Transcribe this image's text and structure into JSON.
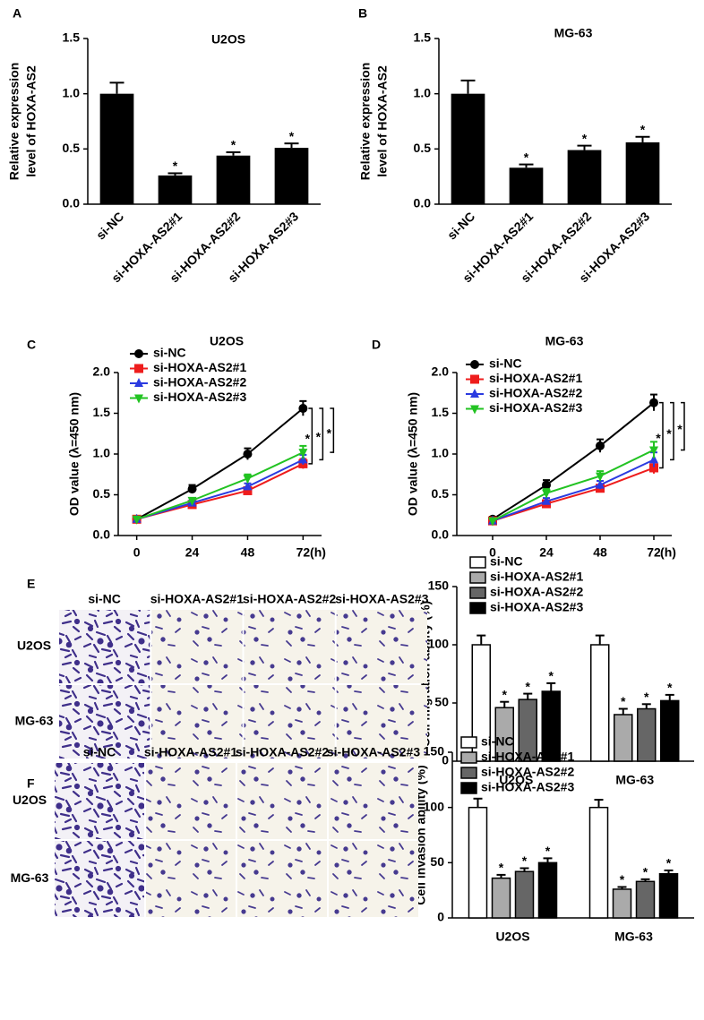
{
  "chart_data": [
    {
      "panel": "A",
      "type": "bar",
      "title": "U2OS",
      "ylabel": [
        "Relative expression",
        "level of HOXA-AS2"
      ],
      "categories": [
        "si-NC",
        "si-HOXA-AS2#1",
        "si-HOXA-AS2#2",
        "si-HOXA-AS2#3"
      ],
      "values": [
        1.0,
        0.26,
        0.44,
        0.51
      ],
      "errors": [
        0.1,
        0.02,
        0.03,
        0.04
      ],
      "annotations": [
        null,
        "*",
        "*",
        "*"
      ],
      "color": "#000000",
      "ylim": [
        0,
        1.5
      ],
      "yticks": [
        {
          "value": 0,
          "label": "0.0"
        },
        0.5,
        {
          "value": 1,
          "label": "1.0"
        },
        1.5
      ]
    },
    {
      "panel": "B",
      "type": "bar",
      "title": "MG-63",
      "ylabel": [
        "Relative expression",
        "level of HOXA-AS2"
      ],
      "categories": [
        "si-NC",
        "si-HOXA-AS2#1",
        "si-HOXA-AS2#2",
        "si-HOXA-AS2#3"
      ],
      "values": [
        1.0,
        0.33,
        0.49,
        0.56
      ],
      "errors": [
        0.12,
        0.03,
        0.04,
        0.05
      ],
      "annotations": [
        null,
        "*",
        "*",
        "*"
      ],
      "color": "#000000",
      "ylim": [
        0,
        1.5
      ],
      "yticks": [
        {
          "value": 0,
          "label": "0.0"
        },
        0.5,
        {
          "value": 1,
          "label": "1.0"
        },
        1.5
      ]
    },
    {
      "panel": "C",
      "type": "line",
      "title": "U2OS",
      "ylabel": [
        "OD value (λ=450 nm)"
      ],
      "xlabel": "(h)",
      "x": [
        0,
        24,
        48,
        72
      ],
      "xlim": [
        -8,
        80
      ],
      "xticks": [
        0,
        24,
        48,
        72
      ],
      "ylim": [
        0,
        2
      ],
      "yticks": [
        {
          "value": 0,
          "label": "0.0"
        },
        0.5,
        {
          "value": 1,
          "label": "1.0"
        },
        1.5,
        {
          "value": 2,
          "label": "2.0"
        }
      ],
      "legend": "upper left",
      "annotations": [
        "*",
        "*",
        "*"
      ],
      "series": [
        {
          "name": "si-NC",
          "color": "#000000",
          "marker": "circle",
          "values": [
            0.2,
            0.57,
            1.0,
            1.56
          ],
          "errors": [
            0.03,
            0.05,
            0.07,
            0.09
          ]
        },
        {
          "name": "si-HOXA-AS2#1",
          "color": "#ee1c1c",
          "marker": "square",
          "values": [
            0.2,
            0.38,
            0.55,
            0.88
          ],
          "errors": [
            0.02,
            0.03,
            0.04,
            0.06
          ]
        },
        {
          "name": "si-HOXA-AS2#2",
          "color": "#2b3be0",
          "marker": "triangle-up",
          "values": [
            0.2,
            0.4,
            0.6,
            0.93
          ],
          "errors": [
            0.02,
            0.03,
            0.04,
            0.06
          ]
        },
        {
          "name": "si-HOXA-AS2#3",
          "color": "#22c322",
          "marker": "triangle-down",
          "values": [
            0.2,
            0.43,
            0.7,
            1.02
          ],
          "errors": [
            0.02,
            0.03,
            0.05,
            0.08
          ]
        }
      ]
    },
    {
      "panel": "D",
      "type": "line",
      "title": "MG-63",
      "ylabel": [
        "OD value (λ=450 nm)"
      ],
      "xlabel": "(h)",
      "x": [
        0,
        24,
        48,
        72
      ],
      "xlim": [
        -16,
        80
      ],
      "xticks": [
        0,
        24,
        48,
        72
      ],
      "ylim": [
        0,
        2
      ],
      "yticks": [
        {
          "value": 0,
          "label": "0.0"
        },
        0.5,
        {
          "value": 1,
          "label": "1.0"
        },
        1.5,
        {
          "value": 2,
          "label": "2.0"
        }
      ],
      "legend": "upper left",
      "annotations": [
        "*",
        "*",
        "*"
      ],
      "series": [
        {
          "name": "si-NC",
          "color": "#000000",
          "marker": "circle",
          "values": [
            0.2,
            0.62,
            1.1,
            1.63
          ],
          "errors": [
            0.03,
            0.06,
            0.08,
            0.1
          ]
        },
        {
          "name": "si-HOXA-AS2#1",
          "color": "#ee1c1c",
          "marker": "square",
          "values": [
            0.18,
            0.39,
            0.58,
            0.83
          ],
          "errors": [
            0.02,
            0.04,
            0.04,
            0.07
          ]
        },
        {
          "name": "si-HOXA-AS2#2",
          "color": "#2b3be0",
          "marker": "triangle-up",
          "values": [
            0.18,
            0.42,
            0.62,
            0.93
          ],
          "errors": [
            0.02,
            0.04,
            0.05,
            0.09
          ]
        },
        {
          "name": "si-HOXA-AS2#3",
          "color": "#22c322",
          "marker": "triangle-down",
          "values": [
            0.18,
            0.52,
            0.73,
            1.05
          ],
          "errors": [
            0.02,
            0.05,
            0.06,
            0.1
          ]
        }
      ]
    },
    {
      "panel": "E",
      "type": "bar",
      "ylabel": [
        "Cell migration ability (%)"
      ],
      "image_columns": [
        "si-NC",
        "si-HOXA-AS2#1",
        "si-HOXA-AS2#2",
        "si-HOXA-AS2#3"
      ],
      "image_rows": [
        "U2OS",
        "MG-63"
      ],
      "categories": [
        "U2OS",
        "MG-63"
      ],
      "ylim": [
        0,
        150
      ],
      "yticks": [
        0,
        50,
        100,
        150
      ],
      "legend": "top",
      "series": [
        {
          "name": "si-NC",
          "color": "#ffffff",
          "values": [
            100,
            100
          ],
          "errors": [
            8,
            8
          ]
        },
        {
          "name": "si-HOXA-AS2#1",
          "color": "#aaaaaa",
          "values": [
            46,
            40
          ],
          "errors": [
            5,
            5
          ],
          "annotations": [
            "*",
            "*"
          ]
        },
        {
          "name": "si-HOXA-AS2#2",
          "color": "#666666",
          "values": [
            53,
            45
          ],
          "errors": [
            5,
            4
          ],
          "annotations": [
            "*",
            "*"
          ]
        },
        {
          "name": "si-HOXA-AS2#3",
          "color": "#000000",
          "values": [
            60,
            52
          ],
          "errors": [
            7,
            5
          ],
          "annotations": [
            "*",
            "*"
          ]
        }
      ]
    },
    {
      "panel": "F",
      "type": "bar",
      "ylabel": [
        "Cell invasion ability (%)"
      ],
      "image_columns": [
        "si-NC",
        "si-HOXA-AS2#1",
        "si-HOXA-AS2#2",
        "si-HOXA-AS2#3"
      ],
      "image_rows": [
        "U2OS",
        "MG-63"
      ],
      "categories": [
        "U2OS",
        "MG-63"
      ],
      "ylim": [
        0,
        150
      ],
      "yticks": [
        0,
        50,
        100,
        150
      ],
      "legend": "top",
      "series": [
        {
          "name": "si-NC",
          "color": "#ffffff",
          "values": [
            100,
            100
          ],
          "errors": [
            8,
            7
          ]
        },
        {
          "name": "si-HOXA-AS2#1",
          "color": "#aaaaaa",
          "values": [
            36,
            26
          ],
          "errors": [
            3,
            2
          ],
          "annotations": [
            "*",
            "*"
          ]
        },
        {
          "name": "si-HOXA-AS2#2",
          "color": "#666666",
          "values": [
            42,
            33
          ],
          "errors": [
            3,
            2
          ],
          "annotations": [
            "*",
            "*"
          ]
        },
        {
          "name": "si-HOXA-AS2#3",
          "color": "#000000",
          "values": [
            50,
            40
          ],
          "errors": [
            4,
            3
          ],
          "annotations": [
            "*",
            "*"
          ]
        }
      ]
    }
  ]
}
